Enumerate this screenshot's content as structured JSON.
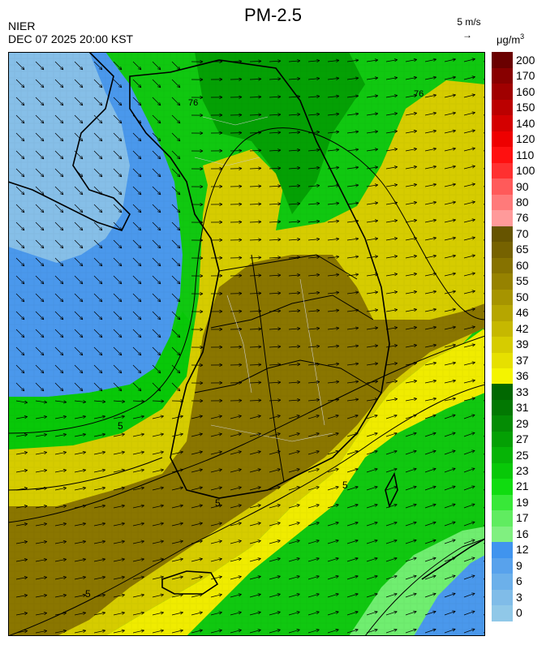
{
  "header": {
    "title": "PM-2.5",
    "agency": "NIER",
    "timestamp": "DEC 07 2025 20:00 KST",
    "wind_reference": "5 m/s",
    "wind_arrow": "→",
    "unit": "μg/m",
    "unit_superscript": "3"
  },
  "colorbar": {
    "bins": [
      {
        "label": "0",
        "color": "#90c8e8"
      },
      {
        "label": "3",
        "color": "#80bce8"
      },
      {
        "label": "6",
        "color": "#6cb0ea"
      },
      {
        "label": "9",
        "color": "#58a2ec"
      },
      {
        "label": "12",
        "color": "#4094ee"
      },
      {
        "label": "16",
        "color": "#80f080"
      },
      {
        "label": "17",
        "color": "#60ec60"
      },
      {
        "label": "19",
        "color": "#38e838"
      },
      {
        "label": "21",
        "color": "#10dc10"
      },
      {
        "label": "23",
        "color": "#08c808"
      },
      {
        "label": "25",
        "color": "#06b406"
      },
      {
        "label": "27",
        "color": "#04a004"
      },
      {
        "label": "29",
        "color": "#048c04"
      },
      {
        "label": "31",
        "color": "#027802"
      },
      {
        "label": "33",
        "color": "#016801"
      },
      {
        "label": "36",
        "color": "#f4f400"
      },
      {
        "label": "37",
        "color": "#e6e000"
      },
      {
        "label": "39",
        "color": "#d6cc00"
      },
      {
        "label": "42",
        "color": "#c6b800"
      },
      {
        "label": "46",
        "color": "#b6a600"
      },
      {
        "label": "50",
        "color": "#a69400"
      },
      {
        "label": "55",
        "color": "#968200"
      },
      {
        "label": "60",
        "color": "#867200"
      },
      {
        "label": "65",
        "color": "#766200"
      },
      {
        "label": "70",
        "color": "#665400"
      },
      {
        "label": "76",
        "color": "#ff9a9a"
      },
      {
        "label": "80",
        "color": "#ff7a7a"
      },
      {
        "label": "90",
        "color": "#ff5a5a"
      },
      {
        "label": "100",
        "color": "#ff3030"
      },
      {
        "label": "110",
        "color": "#ff1010"
      },
      {
        "label": "120",
        "color": "#ee0000"
      },
      {
        "label": "140",
        "color": "#d40000"
      },
      {
        "label": "150",
        "color": "#bb0000"
      },
      {
        "label": "160",
        "color": "#a00000"
      },
      {
        "label": "170",
        "color": "#880000"
      },
      {
        "label": "200",
        "color": "#6a0000"
      }
    ]
  },
  "map": {
    "contour_labels": [
      "5",
      "5",
      "5",
      "5",
      "76",
      "76"
    ]
  }
}
